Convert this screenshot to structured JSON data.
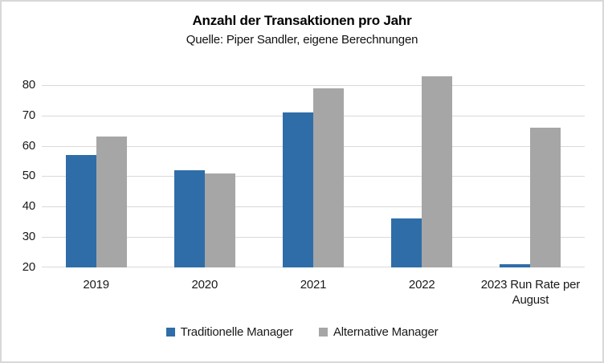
{
  "chart_data": {
    "type": "bar",
    "title": "Anzahl der Transaktionen pro Jahr",
    "subtitle": "Quelle: Piper Sandler, eigene Berechnungen",
    "categories": [
      "2019",
      "2020",
      "2021",
      "2022",
      "2023 Run Rate per August"
    ],
    "series": [
      {
        "name": "Traditionelle Manager",
        "color": "#2F6DA8",
        "values": [
          57,
          52,
          71,
          36,
          21
        ]
      },
      {
        "name": "Alternative Manager",
        "color": "#A6A6A6",
        "values": [
          63,
          51,
          79,
          83,
          66
        ]
      }
    ],
    "ylim": [
      20,
      85
    ],
    "yticks": [
      20,
      30,
      40,
      50,
      60,
      70,
      80
    ],
    "grid": true,
    "grid_color": "#D9D9D9",
    "legend_position": "bottom",
    "xlabel": "",
    "ylabel": ""
  }
}
